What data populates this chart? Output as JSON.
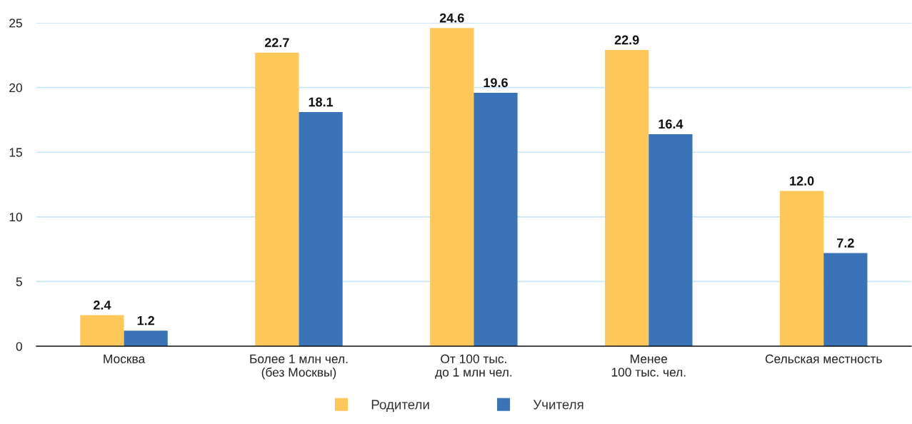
{
  "chart_data": {
    "type": "bar",
    "categories": [
      "Москва",
      "Более 1 млн чел.\n(без Москвы)",
      "От 100 тыс.\nдо 1 млн чел.",
      "Менее\n100 тыс. чел.",
      "Сельская местность"
    ],
    "series": [
      {
        "name": "Родители",
        "color": "#fdc75a",
        "values": [
          2.4,
          22.7,
          24.6,
          22.9,
          12.0
        ],
        "value_labels": [
          "2.4",
          "22.7",
          "24.6",
          "22.9",
          "12.0"
        ]
      },
      {
        "name": "Учителя",
        "color": "#3b73b9",
        "values": [
          1.2,
          18.1,
          19.6,
          16.4,
          7.2
        ],
        "value_labels": [
          "1.2",
          "18.1",
          "19.6",
          "16.4",
          "7.2"
        ]
      }
    ],
    "ylim": [
      0,
      25
    ],
    "yticks": [
      0,
      5,
      10,
      15,
      20,
      25
    ],
    "grid": "y",
    "legend": "bottom"
  }
}
